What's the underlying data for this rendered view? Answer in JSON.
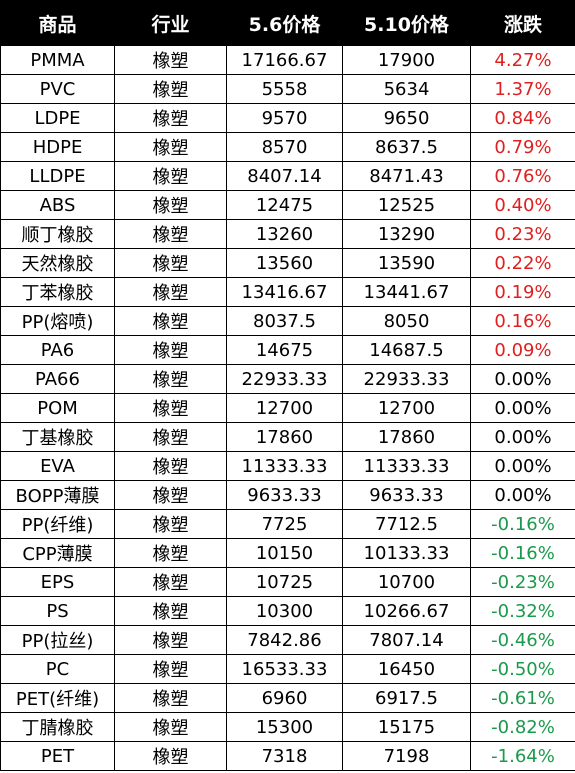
{
  "header": {
    "product": "商品",
    "industry": "行业",
    "price_5_6": "5.6价格",
    "price_5_10": "5.10价格",
    "change": "涨跌"
  },
  "colors": {
    "header_bg": "#000000",
    "header_text": "#ffffff",
    "up": "#e02020",
    "down": "#1a9a4a"
  },
  "rows": [
    {
      "product": "PMMA",
      "industry": "橡塑",
      "p1": "17166.67",
      "p2": "17900",
      "change": "4.27%",
      "dir": "up"
    },
    {
      "product": "PVC",
      "industry": "橡塑",
      "p1": "5558",
      "p2": "5634",
      "change": "1.37%",
      "dir": "up"
    },
    {
      "product": "LDPE",
      "industry": "橡塑",
      "p1": "9570",
      "p2": "9650",
      "change": "0.84%",
      "dir": "up"
    },
    {
      "product": "HDPE",
      "industry": "橡塑",
      "p1": "8570",
      "p2": "8637.5",
      "change": "0.79%",
      "dir": "up"
    },
    {
      "product": "LLDPE",
      "industry": "橡塑",
      "p1": "8407.14",
      "p2": "8471.43",
      "change": "0.76%",
      "dir": "up"
    },
    {
      "product": "ABS",
      "industry": "橡塑",
      "p1": "12475",
      "p2": "12525",
      "change": "0.40%",
      "dir": "up"
    },
    {
      "product": "顺丁橡胶",
      "industry": "橡塑",
      "p1": "13260",
      "p2": "13290",
      "change": "0.23%",
      "dir": "up"
    },
    {
      "product": "天然橡胶",
      "industry": "橡塑",
      "p1": "13560",
      "p2": "13590",
      "change": "0.22%",
      "dir": "up"
    },
    {
      "product": "丁苯橡胶",
      "industry": "橡塑",
      "p1": "13416.67",
      "p2": "13441.67",
      "change": "0.19%",
      "dir": "up"
    },
    {
      "product": "PP(熔喷)",
      "industry": "橡塑",
      "p1": "8037.5",
      "p2": "8050",
      "change": "0.16%",
      "dir": "up"
    },
    {
      "product": "PA6",
      "industry": "橡塑",
      "p1": "14675",
      "p2": "14687.5",
      "change": "0.09%",
      "dir": "up"
    },
    {
      "product": "PA66",
      "industry": "橡塑",
      "p1": "22933.33",
      "p2": "22933.33",
      "change": "0.00%",
      "dir": "flat"
    },
    {
      "product": "POM",
      "industry": "橡塑",
      "p1": "12700",
      "p2": "12700",
      "change": "0.00%",
      "dir": "flat"
    },
    {
      "product": "丁基橡胶",
      "industry": "橡塑",
      "p1": "17860",
      "p2": "17860",
      "change": "0.00%",
      "dir": "flat"
    },
    {
      "product": "EVA",
      "industry": "橡塑",
      "p1": "11333.33",
      "p2": "11333.33",
      "change": "0.00%",
      "dir": "flat"
    },
    {
      "product": "BOPP薄膜",
      "industry": "橡塑",
      "p1": "9633.33",
      "p2": "9633.33",
      "change": "0.00%",
      "dir": "flat"
    },
    {
      "product": "PP(纤维)",
      "industry": "橡塑",
      "p1": "7725",
      "p2": "7712.5",
      "change": "-0.16%",
      "dir": "down"
    },
    {
      "product": "CPP薄膜",
      "industry": "橡塑",
      "p1": "10150",
      "p2": "10133.33",
      "change": "-0.16%",
      "dir": "down"
    },
    {
      "product": "EPS",
      "industry": "橡塑",
      "p1": "10725",
      "p2": "10700",
      "change": "-0.23%",
      "dir": "down"
    },
    {
      "product": "PS",
      "industry": "橡塑",
      "p1": "10300",
      "p2": "10266.67",
      "change": "-0.32%",
      "dir": "down"
    },
    {
      "product": "PP(拉丝)",
      "industry": "橡塑",
      "p1": "7842.86",
      "p2": "7807.14",
      "change": "-0.46%",
      "dir": "down"
    },
    {
      "product": "PC",
      "industry": "橡塑",
      "p1": "16533.33",
      "p2": "16450",
      "change": "-0.50%",
      "dir": "down"
    },
    {
      "product": "PET(纤维)",
      "industry": "橡塑",
      "p1": "6960",
      "p2": "6917.5",
      "change": "-0.61%",
      "dir": "down"
    },
    {
      "product": "丁腈橡胶",
      "industry": "橡塑",
      "p1": "15300",
      "p2": "15175",
      "change": "-0.82%",
      "dir": "down"
    },
    {
      "product": "PET",
      "industry": "橡塑",
      "p1": "7318",
      "p2": "7198",
      "change": "-1.64%",
      "dir": "down"
    }
  ]
}
